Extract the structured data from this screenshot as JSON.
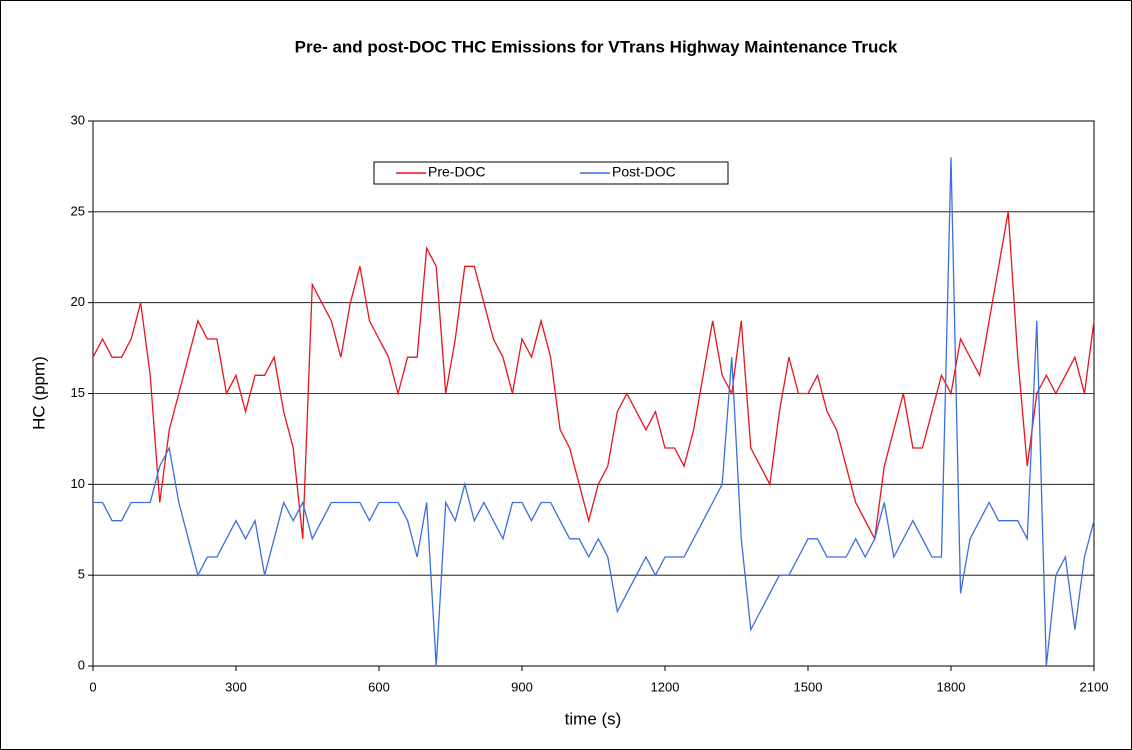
{
  "chart_data": {
    "type": "line",
    "title": "Pre- and post-DOC THC Emissions for VTrans Highway Maintenance Truck",
    "xlabel": "time (s)",
    "ylabel": "HC (ppm)",
    "x": [
      0,
      20,
      40,
      60,
      80,
      100,
      120,
      140,
      160,
      180,
      200,
      220,
      240,
      260,
      280,
      300,
      320,
      340,
      360,
      380,
      400,
      420,
      440,
      460,
      480,
      500,
      520,
      540,
      560,
      580,
      600,
      620,
      640,
      660,
      680,
      700,
      720,
      740,
      760,
      780,
      800,
      820,
      840,
      860,
      880,
      900,
      920,
      940,
      960,
      980,
      1000,
      1020,
      1040,
      1060,
      1080,
      1100,
      1120,
      1140,
      1160,
      1180,
      1200,
      1220,
      1240,
      1260,
      1280,
      1300,
      1320,
      1340,
      1360,
      1380,
      1400,
      1420,
      1440,
      1460,
      1480,
      1500,
      1520,
      1540,
      1560,
      1580,
      1600,
      1620,
      1640,
      1660,
      1680,
      1700,
      1720,
      1740,
      1760,
      1780,
      1800,
      1820,
      1840,
      1860,
      1880,
      1900,
      1920,
      1940,
      1960,
      1980,
      2000,
      2020,
      2040,
      2060,
      2080,
      2100
    ],
    "series": [
      {
        "name": "Pre-DOC",
        "color": "#e8141c",
        "values": [
          17,
          18,
          17,
          17,
          18,
          20,
          16,
          9,
          13,
          15,
          17,
          19,
          18,
          18,
          15,
          16,
          14,
          16,
          16,
          17,
          14,
          12,
          7,
          21,
          20,
          19,
          17,
          20,
          22,
          19,
          18,
          17,
          15,
          17,
          17,
          23,
          22,
          15,
          18,
          22,
          22,
          20,
          18,
          17,
          15,
          18,
          17,
          19,
          17,
          13,
          12,
          10,
          8,
          10,
          11,
          14,
          15,
          14,
          13,
          14,
          12,
          12,
          11,
          13,
          16,
          19,
          16,
          15,
          19,
          12,
          11,
          10,
          14,
          17,
          15,
          15,
          16,
          14,
          13,
          11,
          9,
          8,
          7,
          11,
          13,
          15,
          12,
          12,
          14,
          16,
          15,
          18,
          17,
          16,
          19,
          22,
          25,
          17,
          11,
          15,
          16,
          15,
          16,
          17,
          15,
          19
        ]
      },
      {
        "name": "Post-DOC",
        "color": "#3a6fe0",
        "values": [
          9,
          9,
          8,
          8,
          9,
          9,
          9,
          11,
          12,
          9,
          7,
          5,
          6,
          6,
          7,
          8,
          7,
          8,
          5,
          7,
          9,
          8,
          9,
          7,
          8,
          9,
          9,
          9,
          9,
          8,
          9,
          9,
          9,
          8,
          6,
          9,
          0,
          9,
          8,
          10,
          8,
          9,
          8,
          7,
          9,
          9,
          8,
          9,
          9,
          8,
          7,
          7,
          6,
          7,
          6,
          3,
          4,
          5,
          6,
          5,
          6,
          6,
          6,
          7,
          8,
          9,
          10,
          17,
          7,
          2,
          3,
          4,
          5,
          5,
          6,
          7,
          7,
          6,
          6,
          6,
          7,
          6,
          7,
          9,
          6,
          7,
          8,
          7,
          6,
          6,
          28,
          4,
          7,
          8,
          9,
          8,
          8,
          8,
          7,
          19,
          0,
          5,
          6,
          2,
          6,
          8
        ]
      }
    ],
    "xlim": [
      0,
      2100
    ],
    "xticks": [
      0,
      300,
      600,
      900,
      1200,
      1500,
      1800,
      2100
    ],
    "ylim": [
      0,
      30
    ],
    "yticks": [
      0,
      5,
      10,
      15,
      20,
      25,
      30
    ],
    "grid": true,
    "legend": "top"
  }
}
